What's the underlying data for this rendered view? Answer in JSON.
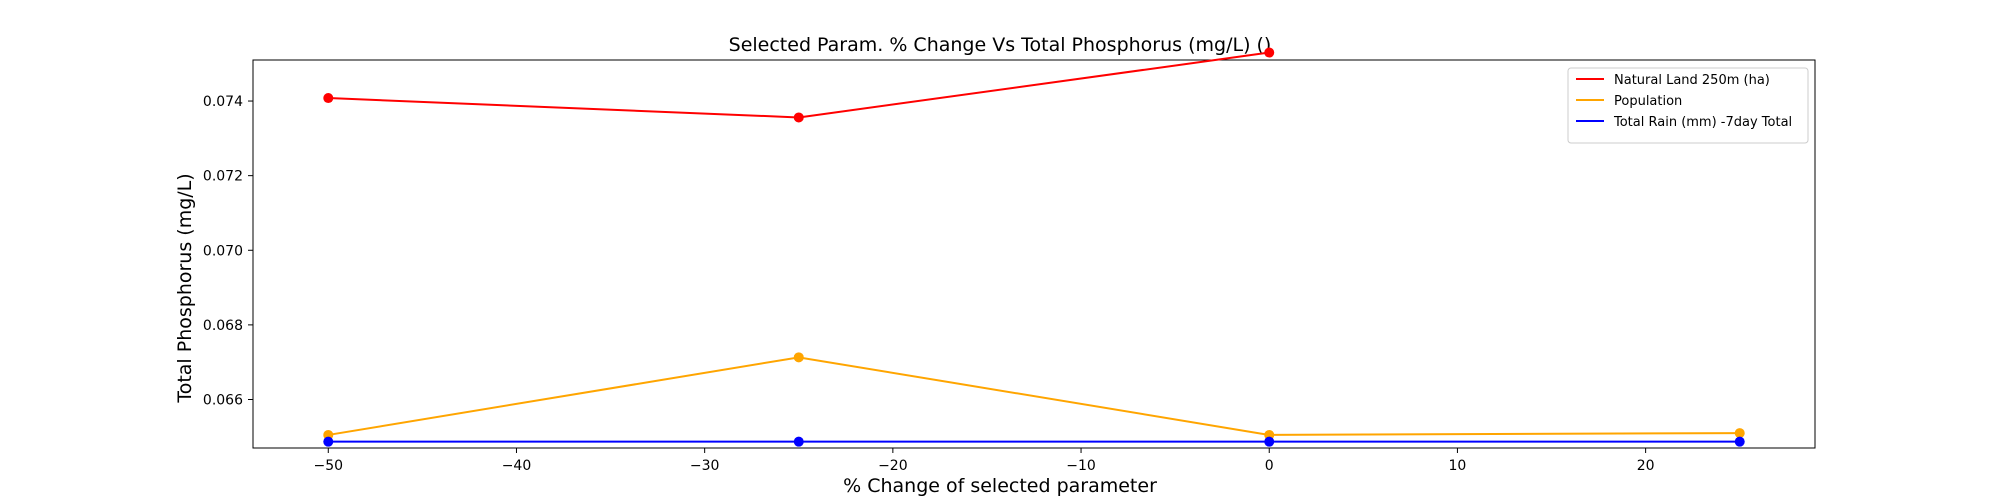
{
  "chart_data": {
    "type": "line",
    "title": "Selected Param. % Change Vs Total Phosphorus (mg/L) ()",
    "xlabel": "% Change of selected parameter",
    "ylabel": "Total Phosphorus (mg/L)",
    "xlim": [
      -54,
      29
    ],
    "ylim": [
      0.0647,
      0.0751
    ],
    "x_ticks": [
      -50,
      -40,
      -30,
      -20,
      -10,
      0,
      10,
      20
    ],
    "x_tick_labels": [
      "−50",
      "−40",
      "−30",
      "−20",
      "−10",
      "0",
      "10",
      "20"
    ],
    "y_ticks": [
      0.066,
      0.068,
      0.07,
      0.072,
      0.074
    ],
    "y_tick_labels": [
      "0.066",
      "0.068",
      "0.070",
      "0.072",
      "0.074"
    ],
    "grid": false,
    "legend_position": "top-right",
    "series": [
      {
        "name": "Natural Land 250m (ha)",
        "color": "#ff0000",
        "x": [
          -50,
          -25,
          0
        ],
        "y": [
          0.07408,
          0.07356,
          0.0753
        ]
      },
      {
        "name": "Population",
        "color": "#ffa500",
        "x": [
          -50,
          -25,
          0,
          25
        ],
        "y": [
          0.06505,
          0.06713,
          0.06505,
          0.0651
        ]
      },
      {
        "name": "Total Rain (mm) -7day Total",
        "color": "#0000ff",
        "x": [
          -50,
          -25,
          0,
          25
        ],
        "y": [
          0.06487,
          0.06487,
          0.06487,
          0.06487
        ]
      }
    ]
  }
}
